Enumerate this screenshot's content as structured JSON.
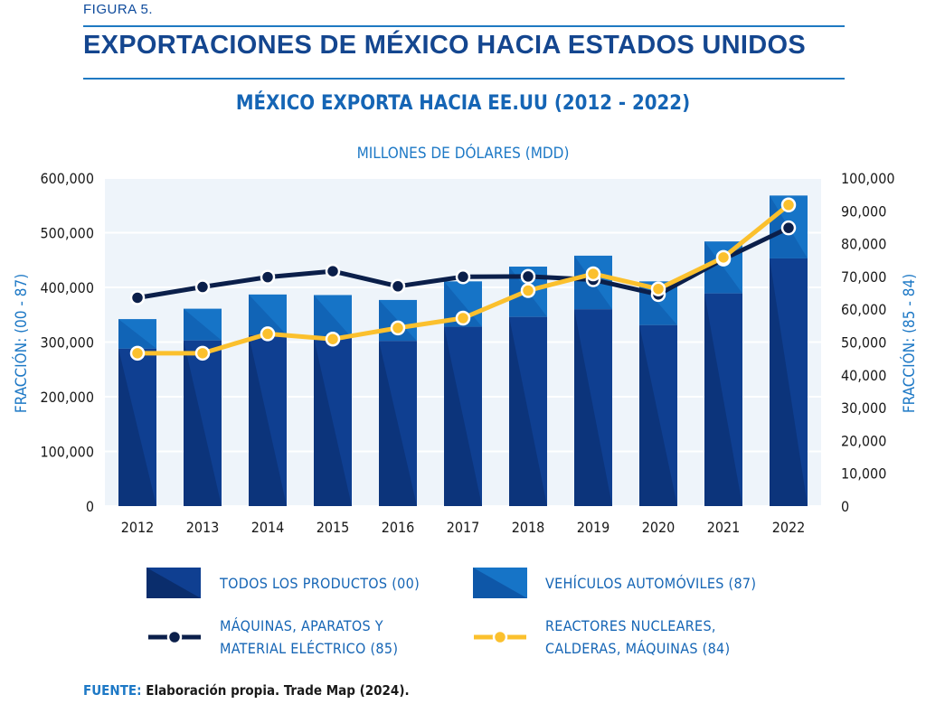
{
  "figure_label": "FIGURA 5.",
  "main_title": "EXPORTACIONES DE MÉXICO HACIA ESTADOS UNIDOS",
  "source": {
    "key": "FUENTE:",
    "text": "Elaboración propia. Trade Map (2024)."
  },
  "colors": {
    "bar_total": "#0f3f91",
    "bar_total_dark": "#0a2d6c",
    "bar_vehicles": "#1674c7",
    "bar_vehicles_dark": "#0e57a8",
    "line_85": "#0b1f4a",
    "line_84": "#fbc02d",
    "plot_bg": "#eef4fa"
  },
  "chart_data": {
    "type": "bar",
    "title": "MÉXICO EXPORTA HACIA EE.UU (2012 - 2022)",
    "unit_label": "MILLONES DE DÓLARES (MDD)",
    "ylabel_left": "FRACCIÓN: (00 - 87)",
    "ylabel_right": "FRACCIÓN: (85 - 84)",
    "ylim_left": [
      0,
      600000
    ],
    "ylim_right": [
      0,
      100000
    ],
    "yticks_left": [
      "0",
      "100,000",
      "200,000",
      "300,000",
      "400,000",
      "500,000",
      "600,000"
    ],
    "yticks_right": [
      "0",
      "10,000",
      "20,000",
      "30,000",
      "40,000",
      "50,000",
      "60,000",
      "70,000",
      "80,000",
      "90,000",
      "100,000"
    ],
    "categories": [
      "2012",
      "2013",
      "2014",
      "2015",
      "2016",
      "2017",
      "2018",
      "2019",
      "2020",
      "2021",
      "2022"
    ],
    "grid": true,
    "series": [
      {
        "name": "TODOS LOS PRODUCTOS (00)",
        "kind": "bar",
        "axis": "left",
        "values": [
          288000,
          303000,
          313000,
          308000,
          302000,
          328000,
          346000,
          360000,
          331000,
          389000,
          453000
        ]
      },
      {
        "name": "VEHÍCULOS AUTOMÓVILES (87)",
        "kind": "bar",
        "axis": "left",
        "values": [
          342000,
          361000,
          387000,
          386000,
          377000,
          411000,
          438000,
          458000,
          411000,
          484000,
          568000
        ]
      },
      {
        "name": "MÁQUINAS, APARATOS Y MATERIAL ELÉCTRICO (85)",
        "kind": "line",
        "axis": "right",
        "values": [
          63500,
          66800,
          69800,
          71600,
          67000,
          69900,
          70000,
          69000,
          64500,
          75300,
          84800
        ]
      },
      {
        "name": "REACTORES NUCLEARES, CALDERAS, MÁQUINAS (84)",
        "kind": "line",
        "axis": "right",
        "values": [
          46600,
          46600,
          52500,
          50900,
          54300,
          57300,
          65700,
          70800,
          66200,
          75800,
          91800
        ]
      }
    ]
  },
  "legend": {
    "total": "TODOS LOS PRODUCTOS (00)",
    "vehicles": "VEHÍCULOS AUTOMÓVILES (87)",
    "line85_l1": "MÁQUINAS, APARATOS Y",
    "line85_l2": "MATERIAL ELÉCTRICO (85)",
    "line84_l1": "REACTORES NUCLEARES,",
    "line84_l2": "CALDERAS, MÁQUINAS (84)"
  }
}
